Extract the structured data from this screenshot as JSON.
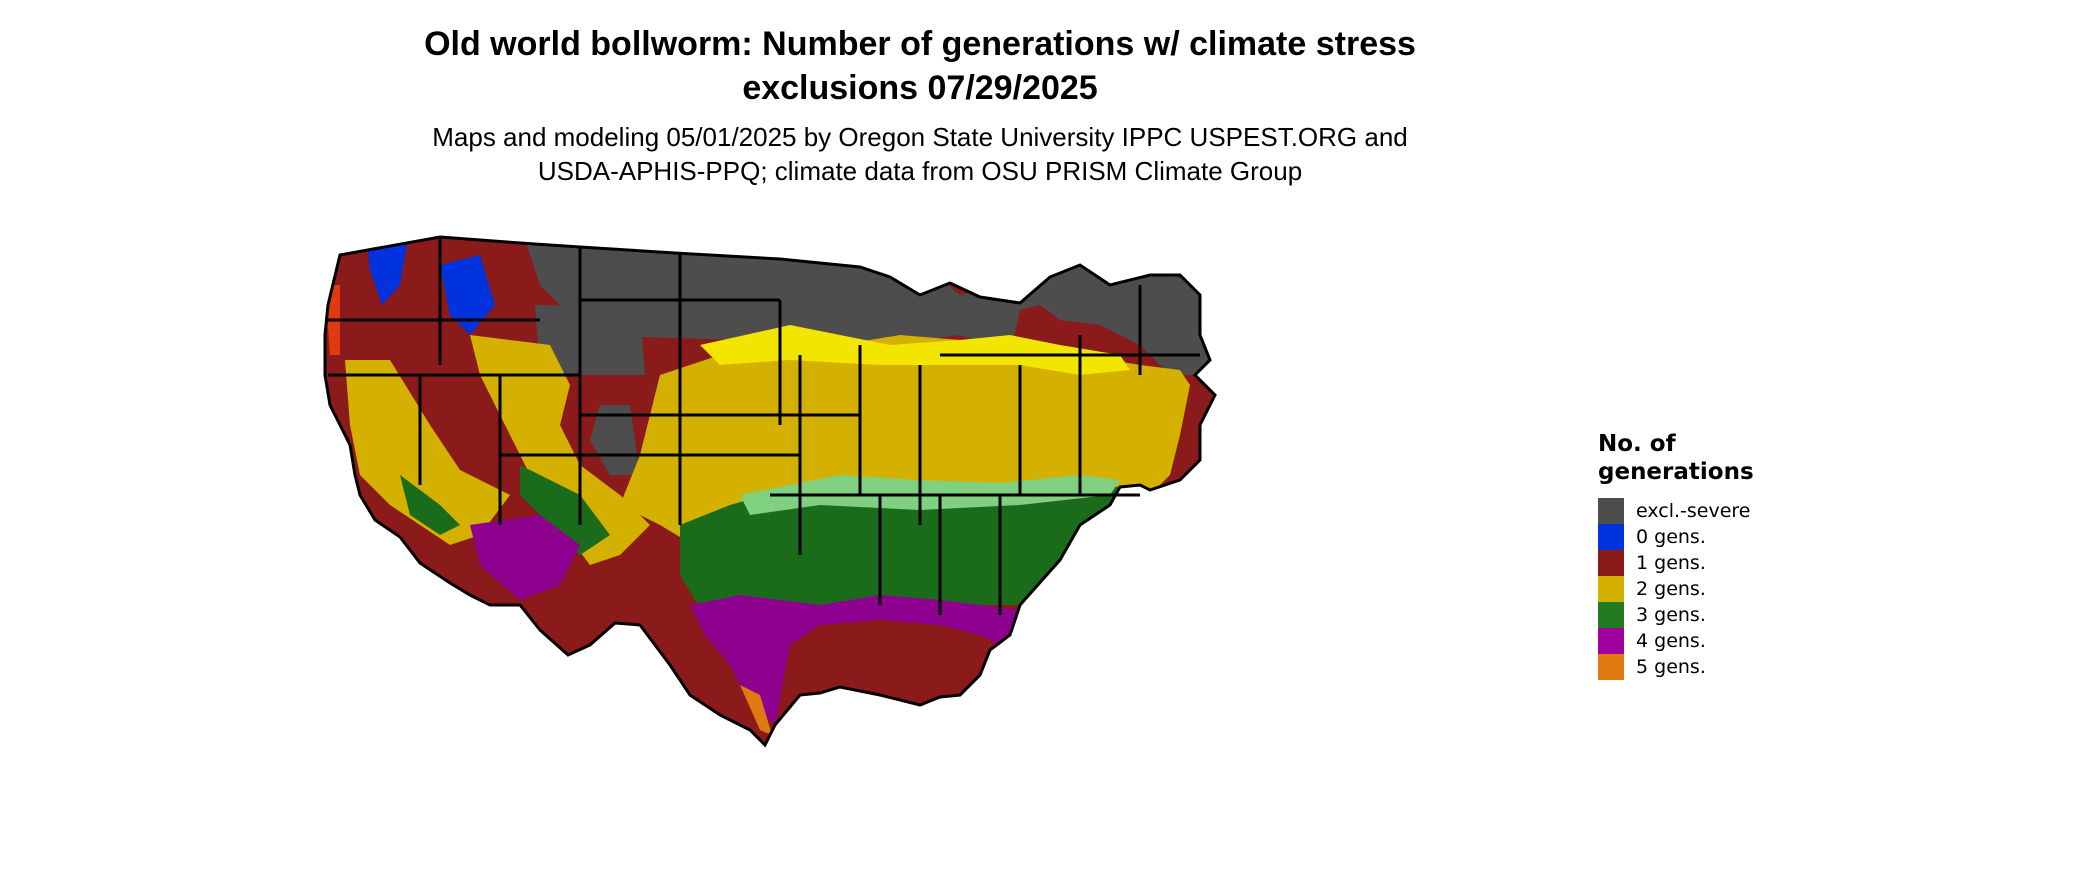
{
  "title": {
    "line1": "Old world bollworm: Number of generations w/ climate stress",
    "line2": "exclusions 07/29/2025"
  },
  "subtitle": {
    "line1": "Maps and modeling 05/01/2025 by Oregon State University IPPC USPEST.ORG and",
    "line2": "USDA-APHIS-PPQ; climate data from OSU PRISM Climate Group"
  },
  "legend": {
    "title_line1": "No. of",
    "title_line2": "generations",
    "items": [
      {
        "label": "excl.-severe",
        "color": "#4d4d4d"
      },
      {
        "label": "0 gens.",
        "color": "#0033dd"
      },
      {
        "label": "1 gens.",
        "color": "#8b1a1a"
      },
      {
        "label": "2 gens.",
        "color": "#d4b000"
      },
      {
        "label": "3 gens.",
        "color": "#217a21"
      },
      {
        "label": "4 gens.",
        "color": "#a0009f"
      },
      {
        "label": "5 gens.",
        "color": "#e07a10"
      }
    ]
  },
  "map_colors": {
    "excl_severe": "#4d4d4d",
    "gen0": "#0033dd",
    "gen1": "#8b1a1a",
    "gen1_hot": "#e03a10",
    "gen2": "#d4b000",
    "gen2_light": "#f2e600",
    "gen3": "#1a6b1a",
    "gen3_light": "#7fd17f",
    "gen4": "#8e008e",
    "gen5": "#e07a10",
    "borders": "#000000"
  }
}
